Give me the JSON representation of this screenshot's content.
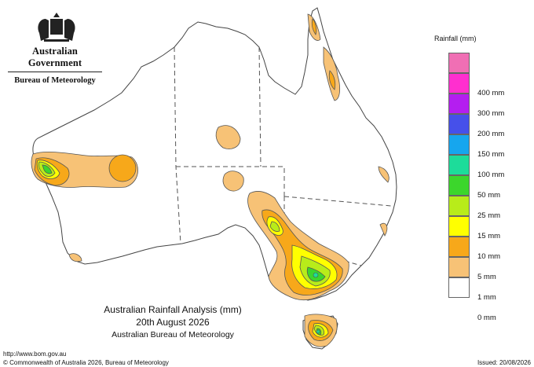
{
  "header": {
    "government": "Australian Government",
    "bureau": "Bureau of Meteorology"
  },
  "legend": {
    "title": "Rainfall (mm)",
    "items": [
      {
        "label": "",
        "color": "#f06fb4"
      },
      {
        "label": "400 mm",
        "color": "#ff2fcf"
      },
      {
        "label": "300 mm",
        "color": "#b41ef0"
      },
      {
        "label": "200 mm",
        "color": "#4650ea"
      },
      {
        "label": "150 mm",
        "color": "#16a6ee"
      },
      {
        "label": "100 mm",
        "color": "#1ddc9a"
      },
      {
        "label": "50 mm",
        "color": "#3cd62c"
      },
      {
        "label": "25 mm",
        "color": "#b8ec1a"
      },
      {
        "label": "15 mm",
        "color": "#ffff00"
      },
      {
        "label": "10 mm",
        "color": "#f7a81a"
      },
      {
        "label": "5 mm",
        "color": "#f7c276"
      },
      {
        "label": "1 mm",
        "color": "#ffffff"
      },
      {
        "label": "0 mm",
        "color": ""
      }
    ]
  },
  "caption": {
    "title": "Australian Rainfall Analysis (mm)",
    "date": "20th August 2026",
    "agency": "Australian Bureau of Meteorology"
  },
  "footer": {
    "url": "http://www.bom.gov.au",
    "copyright": "© Commonwealth of Australia 2026, Bureau of Meteorology",
    "issued": "Issued: 20/08/2026"
  }
}
